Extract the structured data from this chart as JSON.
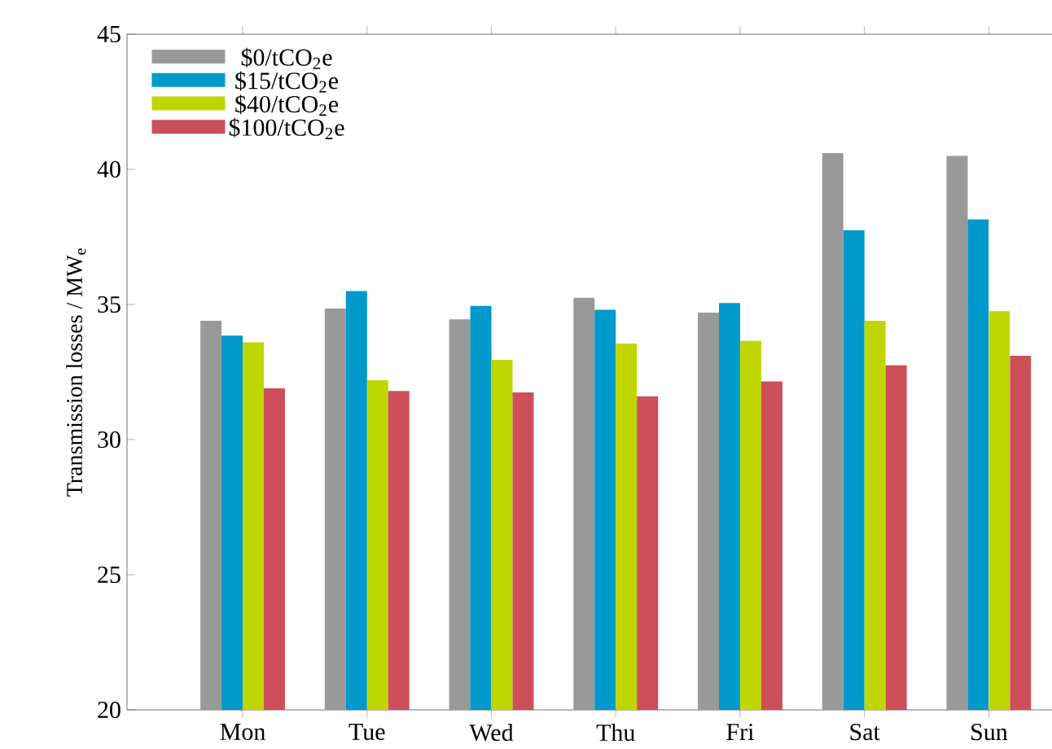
{
  "chart_data": {
    "type": "bar",
    "ylabel": "Transmission losses / MW$_{e}$",
    "categories": [
      "Mon",
      "Tue",
      "Wed",
      "Thu",
      "Fri",
      "Sat",
      "Sun"
    ],
    "series": [
      {
        "name": "$0/tCO$_{2}$e",
        "color": "#999999",
        "values": [
          34.4,
          34.85,
          34.45,
          35.25,
          34.7,
          40.6,
          40.5
        ]
      },
      {
        "name": "$15/tCO$_{2}$e",
        "color": "#0099cc",
        "values": [
          33.85,
          35.5,
          34.95,
          34.8,
          35.05,
          37.75,
          38.15
        ]
      },
      {
        "name": "$40/tCO$_{2}$e",
        "color": "#c0d600",
        "values": [
          33.6,
          32.2,
          32.95,
          33.55,
          33.65,
          34.4,
          34.75
        ]
      },
      {
        "name": "$100/tCO$_{2}$e",
        "color": "#cc4f59",
        "values": [
          31.9,
          31.8,
          31.75,
          31.6,
          32.15,
          32.75,
          33.1
        ]
      }
    ],
    "ylim": [
      20,
      45
    ],
    "yticks": [
      20,
      25,
      30,
      35,
      40,
      45
    ],
    "grid": false,
    "legend": "top left"
  }
}
